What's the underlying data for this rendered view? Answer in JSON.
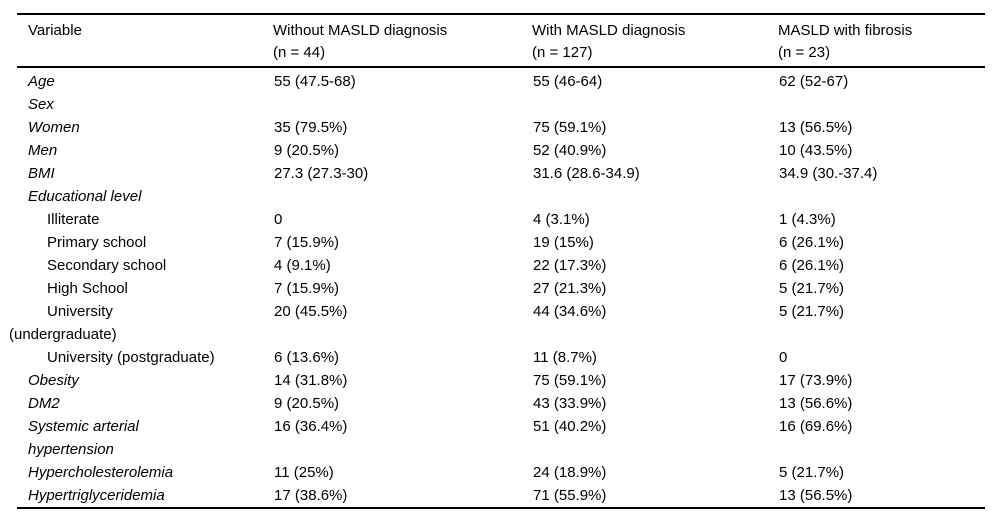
{
  "table": {
    "columns": [
      {
        "label": "Variable",
        "sub": ""
      },
      {
        "label": "Without MASLD diagnosis",
        "sub": "(n = 44)"
      },
      {
        "label": "With MASLD diagnosis",
        "sub": "(n = 127)"
      },
      {
        "label": "MASLD with fibrosis",
        "sub": "(n = 23)"
      }
    ],
    "rows": [
      {
        "label_lines": [
          "Age"
        ],
        "indent": false,
        "values": [
          "55 (47.5-68)",
          "55 (46-64)",
          "62 (52-67)"
        ]
      },
      {
        "label_lines": [
          "Sex"
        ],
        "indent": false,
        "values": [
          "",
          "",
          ""
        ]
      },
      {
        "label_lines": [
          "Women"
        ],
        "indent": false,
        "values": [
          "35 (79.5%)",
          "75 (59.1%)",
          "13 (56.5%)"
        ]
      },
      {
        "label_lines": [
          "Men"
        ],
        "indent": false,
        "values": [
          "9 (20.5%)",
          "52 (40.9%)",
          "10 (43.5%)"
        ]
      },
      {
        "label_lines": [
          "BMI"
        ],
        "indent": false,
        "values": [
          "27.3 (27.3-30)",
          "31.6 (28.6-34.9)",
          "34.9 (30.-37.4)"
        ]
      },
      {
        "label_lines": [
          "Educational level"
        ],
        "indent": false,
        "values": [
          "",
          "",
          ""
        ]
      },
      {
        "label_lines": [
          "Illiterate"
        ],
        "indent": true,
        "values": [
          "0",
          "4 (3.1%)",
          "1 (4.3%)"
        ]
      },
      {
        "label_lines": [
          "Primary school"
        ],
        "indent": true,
        "values": [
          "7 (15.9%)",
          "19 (15%)",
          "6 (26.1%)"
        ]
      },
      {
        "label_lines": [
          "Secondary school"
        ],
        "indent": true,
        "values": [
          "4 (9.1%)",
          "22 (17.3%)",
          "6 (26.1%)"
        ]
      },
      {
        "label_lines": [
          "High School"
        ],
        "indent": true,
        "values": [
          "7 (15.9%)",
          "27 (21.3%)",
          "5 (21.7%)"
        ]
      },
      {
        "label_lines": [
          "University",
          "(undergraduate)"
        ],
        "indent": true,
        "values": [
          "20 (45.5%)",
          "44 (34.6%)",
          "5 (21.7%)"
        ]
      },
      {
        "label_lines": [
          "University (postgraduate)"
        ],
        "indent": true,
        "values": [
          "6 (13.6%)",
          "11 (8.7%)",
          "0"
        ]
      },
      {
        "label_lines": [
          "Obesity"
        ],
        "indent": false,
        "values": [
          "14 (31.8%)",
          "75 (59.1%)",
          "17 (73.9%)"
        ]
      },
      {
        "label_lines": [
          "DM2"
        ],
        "indent": false,
        "values": [
          "9 (20.5%)",
          "43 (33.9%)",
          "13 (56.6%)"
        ]
      },
      {
        "label_lines": [
          "Systemic arterial",
          "hypertension"
        ],
        "indent": false,
        "values": [
          "16 (36.4%)",
          "51 (40.2%)",
          "16 (69.6%)"
        ]
      },
      {
        "label_lines": [
          "Hypercholesterolemia"
        ],
        "indent": false,
        "values": [
          "11 (25%)",
          "24 (18.9%)",
          "5 (21.7%)"
        ]
      },
      {
        "label_lines": [
          "Hypertriglyceridemia"
        ],
        "indent": false,
        "values": [
          "17 (38.6%)",
          "71 (55.9%)",
          "13 (56.5%)"
        ]
      }
    ]
  }
}
